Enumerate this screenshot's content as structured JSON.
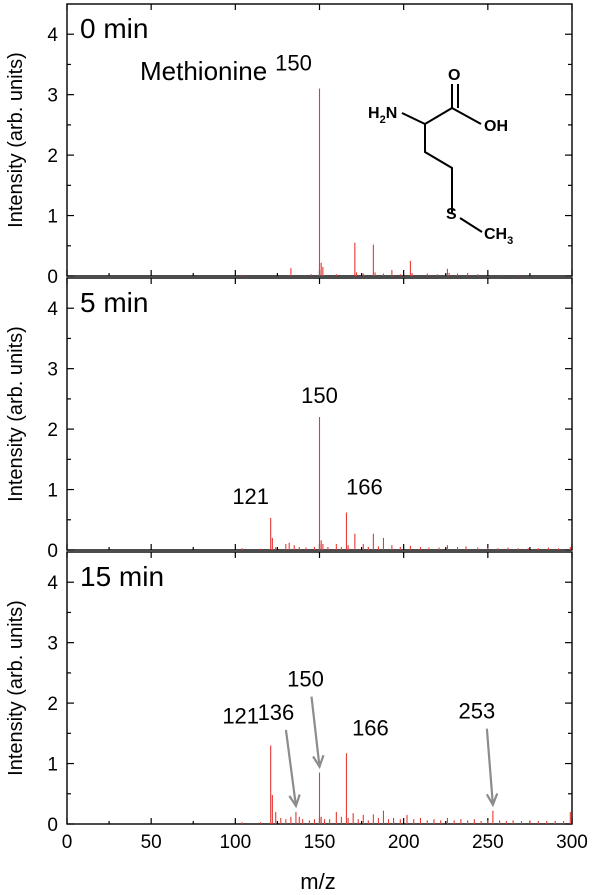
{
  "chart_data": {
    "type": "bar",
    "x_label": "m/z",
    "y_label": "Intensity (arb. units)",
    "xlim": [
      0,
      300
    ],
    "ylim": [
      0,
      4.5
    ],
    "x_ticks": [
      0,
      50,
      100,
      150,
      200,
      250,
      300
    ],
    "y_ticks": [
      0,
      1,
      2,
      3,
      4
    ],
    "grid": false,
    "panels": [
      {
        "label": "0 min",
        "compound": "Methionine",
        "structure": {
          "amine": "H2N",
          "amine_sub": "2",
          "carbonyl_o": "O",
          "hydroxyl": "OH",
          "sulfur": "S",
          "methyl": "CH3",
          "methyl_sub": "3"
        },
        "peaks": [
          {
            "mz": 104,
            "y": 0.02
          },
          {
            "mz": 133,
            "y": 0.13
          },
          {
            "mz": 145,
            "y": 0.03
          },
          {
            "mz": 150,
            "y": 3.1
          },
          {
            "mz": 151,
            "y": 0.22
          },
          {
            "mz": 152,
            "y": 0.15
          },
          {
            "mz": 160,
            "y": 0.03
          },
          {
            "mz": 171,
            "y": 0.55
          },
          {
            "mz": 172,
            "y": 0.06
          },
          {
            "mz": 176,
            "y": 0.04
          },
          {
            "mz": 182,
            "y": 0.52
          },
          {
            "mz": 183,
            "y": 0.06
          },
          {
            "mz": 188,
            "y": 0.04
          },
          {
            "mz": 193,
            "y": 0.1
          },
          {
            "mz": 198,
            "y": 0.03
          },
          {
            "mz": 204,
            "y": 0.25
          },
          {
            "mz": 205,
            "y": 0.05
          },
          {
            "mz": 214,
            "y": 0.04
          },
          {
            "mz": 220,
            "y": 0.03
          },
          {
            "mz": 226,
            "y": 0.12
          },
          {
            "mz": 227,
            "y": 0.05
          },
          {
            "mz": 232,
            "y": 0.04
          },
          {
            "mz": 238,
            "y": 0.05
          },
          {
            "mz": 244,
            "y": 0.03
          },
          {
            "mz": 258,
            "y": 0.02
          },
          {
            "mz": 269,
            "y": 0.02
          }
        ],
        "annotations": [
          {
            "text": "150",
            "mz": 150,
            "y": 3.1
          }
        ]
      },
      {
        "label": "5 min",
        "peaks": [
          {
            "mz": 104,
            "y": 0.03
          },
          {
            "mz": 115,
            "y": 0.02
          },
          {
            "mz": 121,
            "y": 0.53
          },
          {
            "mz": 122,
            "y": 0.2
          },
          {
            "mz": 124,
            "y": 0.05
          },
          {
            "mz": 130,
            "y": 0.1
          },
          {
            "mz": 132,
            "y": 0.12
          },
          {
            "mz": 135,
            "y": 0.08
          },
          {
            "mz": 138,
            "y": 0.05
          },
          {
            "mz": 142,
            "y": 0.04
          },
          {
            "mz": 147,
            "y": 0.05
          },
          {
            "mz": 150,
            "y": 2.2
          },
          {
            "mz": 151,
            "y": 0.16
          },
          {
            "mz": 152,
            "y": 0.1
          },
          {
            "mz": 155,
            "y": 0.05
          },
          {
            "mz": 160,
            "y": 0.1
          },
          {
            "mz": 163,
            "y": 0.05
          },
          {
            "mz": 166,
            "y": 0.62
          },
          {
            "mz": 167,
            "y": 0.08
          },
          {
            "mz": 171,
            "y": 0.27
          },
          {
            "mz": 176,
            "y": 0.1
          },
          {
            "mz": 179,
            "y": 0.05
          },
          {
            "mz": 182,
            "y": 0.27
          },
          {
            "mz": 185,
            "y": 0.06
          },
          {
            "mz": 188,
            "y": 0.2
          },
          {
            "mz": 193,
            "y": 0.08
          },
          {
            "mz": 198,
            "y": 0.05
          },
          {
            "mz": 204,
            "y": 0.07
          },
          {
            "mz": 210,
            "y": 0.05
          },
          {
            "mz": 215,
            "y": 0.04
          },
          {
            "mz": 221,
            "y": 0.04
          },
          {
            "mz": 226,
            "y": 0.08
          },
          {
            "mz": 232,
            "y": 0.05
          },
          {
            "mz": 237,
            "y": 0.06
          },
          {
            "mz": 244,
            "y": 0.04
          },
          {
            "mz": 250,
            "y": 0.04
          },
          {
            "mz": 256,
            "y": 0.03
          },
          {
            "mz": 262,
            "y": 0.04
          },
          {
            "mz": 268,
            "y": 0.03
          },
          {
            "mz": 274,
            "y": 0.03
          },
          {
            "mz": 280,
            "y": 0.03
          },
          {
            "mz": 286,
            "y": 0.04
          },
          {
            "mz": 292,
            "y": 0.03
          },
          {
            "mz": 299,
            "y": 0.05
          }
        ],
        "annotations": [
          {
            "text": "121",
            "mz": 121,
            "y": 0.53
          },
          {
            "text": "150",
            "mz": 150,
            "y": 2.2
          },
          {
            "text": "166",
            "mz": 166,
            "y": 0.62
          }
        ]
      },
      {
        "label": "15 min",
        "peaks": [
          {
            "mz": 104,
            "y": 0.03
          },
          {
            "mz": 115,
            "y": 0.03
          },
          {
            "mz": 121,
            "y": 1.3
          },
          {
            "mz": 122,
            "y": 0.48
          },
          {
            "mz": 124,
            "y": 0.2
          },
          {
            "mz": 127,
            "y": 0.1
          },
          {
            "mz": 130,
            "y": 0.08
          },
          {
            "mz": 133,
            "y": 0.12
          },
          {
            "mz": 136,
            "y": 0.2
          },
          {
            "mz": 138,
            "y": 0.12
          },
          {
            "mz": 140,
            "y": 0.08
          },
          {
            "mz": 144,
            "y": 0.06
          },
          {
            "mz": 147,
            "y": 0.08
          },
          {
            "mz": 150,
            "y": 0.85
          },
          {
            "mz": 151,
            "y": 0.12
          },
          {
            "mz": 153,
            "y": 0.08
          },
          {
            "mz": 156,
            "y": 0.08
          },
          {
            "mz": 160,
            "y": 0.2
          },
          {
            "mz": 163,
            "y": 0.12
          },
          {
            "mz": 166,
            "y": 1.17
          },
          {
            "mz": 167,
            "y": 0.1
          },
          {
            "mz": 170,
            "y": 0.18
          },
          {
            "mz": 173,
            "y": 0.08
          },
          {
            "mz": 176,
            "y": 0.15
          },
          {
            "mz": 179,
            "y": 0.06
          },
          {
            "mz": 182,
            "y": 0.16
          },
          {
            "mz": 185,
            "y": 0.1
          },
          {
            "mz": 188,
            "y": 0.22
          },
          {
            "mz": 191,
            "y": 0.08
          },
          {
            "mz": 194,
            "y": 0.1
          },
          {
            "mz": 198,
            "y": 0.08
          },
          {
            "mz": 202,
            "y": 0.15
          },
          {
            "mz": 206,
            "y": 0.08
          },
          {
            "mz": 210,
            "y": 0.1
          },
          {
            "mz": 214,
            "y": 0.06
          },
          {
            "mz": 218,
            "y": 0.08
          },
          {
            "mz": 222,
            "y": 0.06
          },
          {
            "mz": 226,
            "y": 0.1
          },
          {
            "mz": 230,
            "y": 0.06
          },
          {
            "mz": 234,
            "y": 0.08
          },
          {
            "mz": 238,
            "y": 0.06
          },
          {
            "mz": 242,
            "y": 0.08
          },
          {
            "mz": 246,
            "y": 0.05
          },
          {
            "mz": 250,
            "y": 0.06
          },
          {
            "mz": 253,
            "y": 0.22
          },
          {
            "mz": 257,
            "y": 0.06
          },
          {
            "mz": 261,
            "y": 0.05
          },
          {
            "mz": 265,
            "y": 0.06
          },
          {
            "mz": 270,
            "y": 0.05
          },
          {
            "mz": 275,
            "y": 0.06
          },
          {
            "mz": 280,
            "y": 0.05
          },
          {
            "mz": 285,
            "y": 0.05
          },
          {
            "mz": 290,
            "y": 0.05
          },
          {
            "mz": 295,
            "y": 0.05
          },
          {
            "mz": 299,
            "y": 0.2
          }
        ],
        "annotations": [
          {
            "text": "121",
            "mz": 121,
            "y": 1.3
          },
          {
            "text": "136",
            "mz": 136,
            "y": 0.2,
            "arrow": true
          },
          {
            "text": "150",
            "mz": 150,
            "y": 0.85,
            "arrow": true
          },
          {
            "text": "166",
            "mz": 166,
            "y": 1.17
          },
          {
            "text": "253",
            "mz": 253,
            "y": 0.22,
            "arrow": true
          }
        ]
      }
    ]
  },
  "colors": {
    "peaks": "#e53935",
    "arrows": "#8c8c8c",
    "axes": "#000000"
  }
}
